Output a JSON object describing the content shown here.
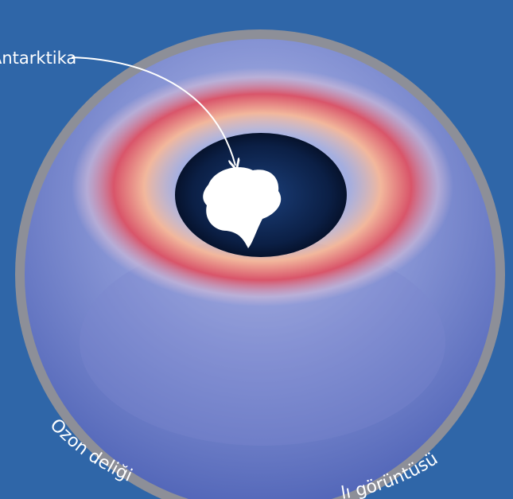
{
  "label": "Antarktika",
  "caption": [
    "Ozon deliği",
    "lı görüntüsü"
  ]
}
